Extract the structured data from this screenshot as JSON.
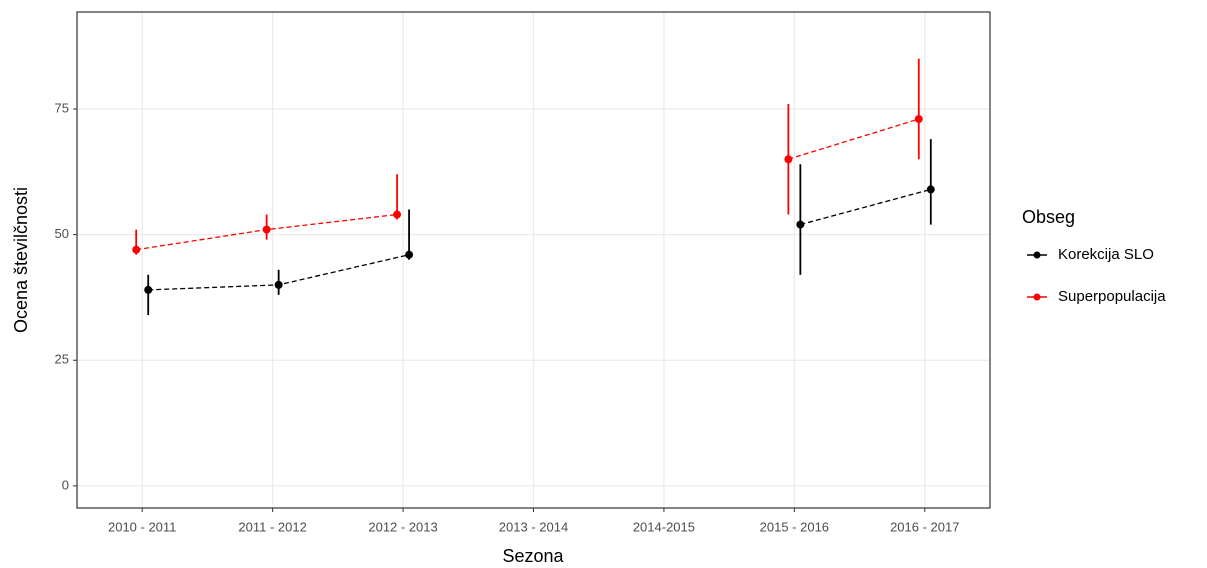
{
  "chart_data": {
    "type": "pointrange",
    "x_label": "Sezona",
    "y_label": "Ocena številčnosti",
    "legend_title": "Obseg",
    "legend": "right",
    "grid": true,
    "categories": [
      "2010 - 2011",
      "2011 - 2012",
      "2012 - 2013",
      "2013 - 2014",
      "2014-2015",
      "2015 - 2016",
      "2016 - 2017"
    ],
    "series": [
      {
        "name": "Korekcija SLO",
        "color": "#000000",
        "values": [
          39,
          40,
          46,
          null,
          null,
          52,
          59
        ],
        "lower": [
          34,
          38,
          45,
          null,
          null,
          42,
          52
        ],
        "upper": [
          42,
          43,
          55,
          null,
          null,
          64,
          69
        ]
      },
      {
        "name": "Superpopulacija",
        "color": "#ff0000",
        "values": [
          47,
          51,
          54,
          null,
          null,
          65,
          73
        ],
        "lower": [
          46,
          49,
          53,
          null,
          null,
          54,
          65
        ],
        "upper": [
          51,
          54,
          62,
          null,
          null,
          76,
          85
        ]
      }
    ],
    "ylim": [
      -4.4,
      94.3
    ],
    "yticks": [
      0,
      25,
      50,
      75
    ]
  }
}
